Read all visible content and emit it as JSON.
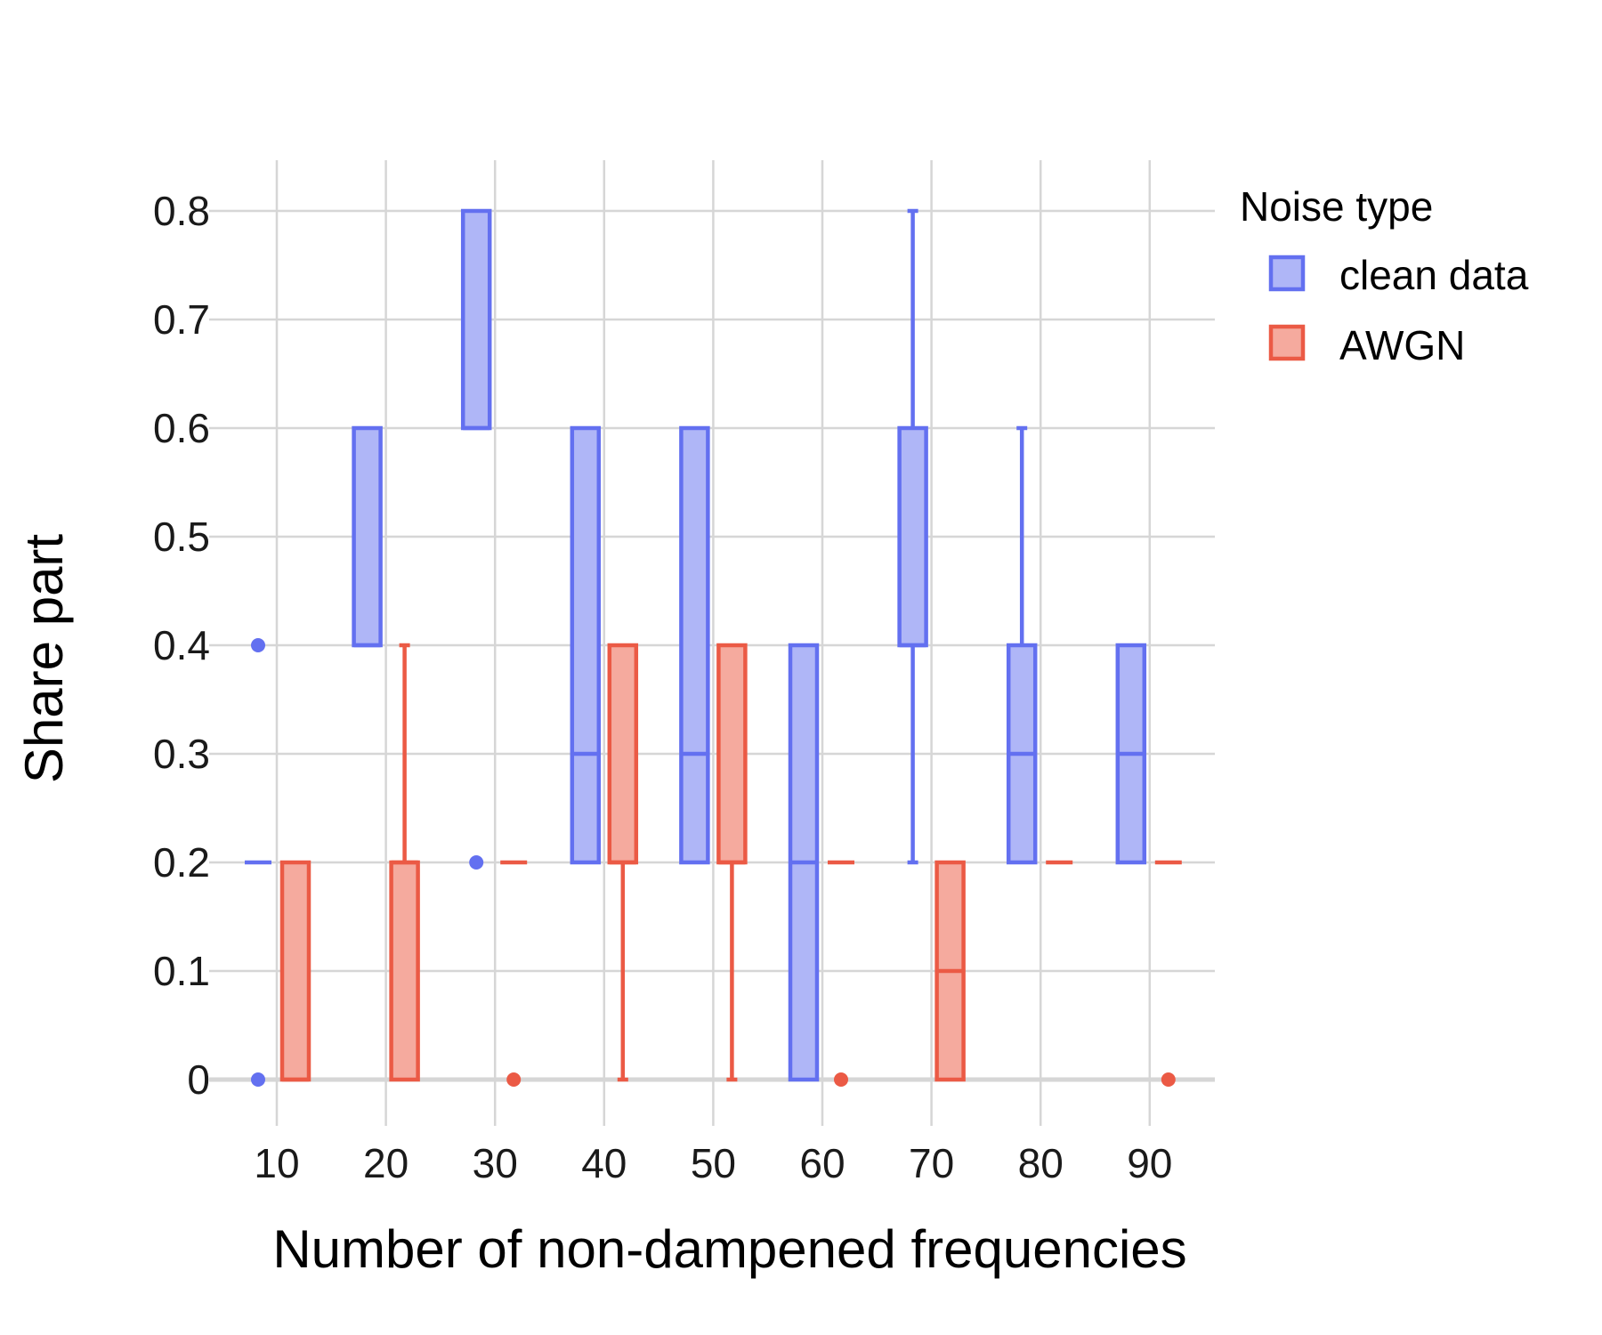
{
  "chart_data": {
    "type": "box",
    "xlabel": "Number of non-dampened frequencies",
    "ylabel": "Share part",
    "x_categories": [
      "10",
      "20",
      "30",
      "40",
      "50",
      "60",
      "70",
      "80",
      "90"
    ],
    "y_ticks": [
      "0",
      "0.1",
      "0.2",
      "0.3",
      "0.4",
      "0.5",
      "0.6",
      "0.7",
      "0.8"
    ],
    "ylim": [
      -0.07,
      0.84
    ],
    "grid": true,
    "legend": {
      "title": "Noise type",
      "position": "right",
      "entries": [
        "clean data",
        "AWGN"
      ]
    },
    "series": [
      {
        "name": "clean data",
        "stroke": "#6370f0",
        "fill": "#afb6f7",
        "boxes": [
          {
            "x": "10",
            "q1": 0.2,
            "median": 0.2,
            "q3": 0.2,
            "whisker_low": 0.2,
            "whisker_high": 0.2,
            "outliers": [
              0.4,
              0.0
            ]
          },
          {
            "x": "20",
            "q1": 0.4,
            "median": 0.4,
            "q3": 0.6,
            "whisker_low": 0.4,
            "whisker_high": 0.6,
            "outliers": []
          },
          {
            "x": "30",
            "q1": 0.6,
            "median": 0.6,
            "q3": 0.8,
            "whisker_low": 0.6,
            "whisker_high": 0.8,
            "outliers": [
              0.2
            ]
          },
          {
            "x": "40",
            "q1": 0.2,
            "median": 0.3,
            "q3": 0.6,
            "whisker_low": 0.2,
            "whisker_high": 0.6,
            "outliers": []
          },
          {
            "x": "50",
            "q1": 0.2,
            "median": 0.3,
            "q3": 0.6,
            "whisker_low": 0.2,
            "whisker_high": 0.6,
            "outliers": []
          },
          {
            "x": "60",
            "q1": 0.0,
            "median": 0.2,
            "q3": 0.4,
            "whisker_low": 0.0,
            "whisker_high": 0.4,
            "outliers": []
          },
          {
            "x": "70",
            "q1": 0.4,
            "median": 0.4,
            "q3": 0.6,
            "whisker_low": 0.2,
            "whisker_high": 0.8,
            "outliers": []
          },
          {
            "x": "80",
            "q1": 0.2,
            "median": 0.3,
            "q3": 0.4,
            "whisker_low": 0.2,
            "whisker_high": 0.6,
            "outliers": []
          },
          {
            "x": "90",
            "q1": 0.2,
            "median": 0.3,
            "q3": 0.4,
            "whisker_low": 0.2,
            "whisker_high": 0.4,
            "outliers": []
          }
        ]
      },
      {
        "name": "AWGN",
        "stroke": "#eb5a45",
        "fill": "#f5aa9e",
        "boxes": [
          {
            "x": "10",
            "q1": 0.0,
            "median": 0.0,
            "q3": 0.2,
            "whisker_low": 0.0,
            "whisker_high": 0.2,
            "outliers": []
          },
          {
            "x": "20",
            "q1": 0.0,
            "median": 0.2,
            "q3": 0.2,
            "whisker_low": 0.0,
            "whisker_high": 0.4,
            "outliers": []
          },
          {
            "x": "30",
            "q1": 0.2,
            "median": 0.2,
            "q3": 0.2,
            "whisker_low": 0.2,
            "whisker_high": 0.2,
            "outliers": [
              0.0
            ]
          },
          {
            "x": "40",
            "q1": 0.2,
            "median": 0.2,
            "q3": 0.4,
            "whisker_low": 0.0,
            "whisker_high": 0.4,
            "outliers": []
          },
          {
            "x": "50",
            "q1": 0.2,
            "median": 0.2,
            "q3": 0.4,
            "whisker_low": 0.0,
            "whisker_high": 0.4,
            "outliers": []
          },
          {
            "x": "60",
            "q1": 0.2,
            "median": 0.2,
            "q3": 0.2,
            "whisker_low": 0.2,
            "whisker_high": 0.2,
            "outliers": [
              0.0
            ]
          },
          {
            "x": "70",
            "q1": 0.0,
            "median": 0.1,
            "q3": 0.2,
            "whisker_low": 0.0,
            "whisker_high": 0.2,
            "outliers": []
          },
          {
            "x": "80",
            "q1": 0.2,
            "median": 0.2,
            "q3": 0.2,
            "whisker_low": 0.2,
            "whisker_high": 0.2,
            "outliers": []
          },
          {
            "x": "90",
            "q1": 0.2,
            "median": 0.2,
            "q3": 0.2,
            "whisker_low": 0.2,
            "whisker_high": 0.2,
            "outliers": [
              0.0
            ]
          }
        ]
      }
    ]
  }
}
